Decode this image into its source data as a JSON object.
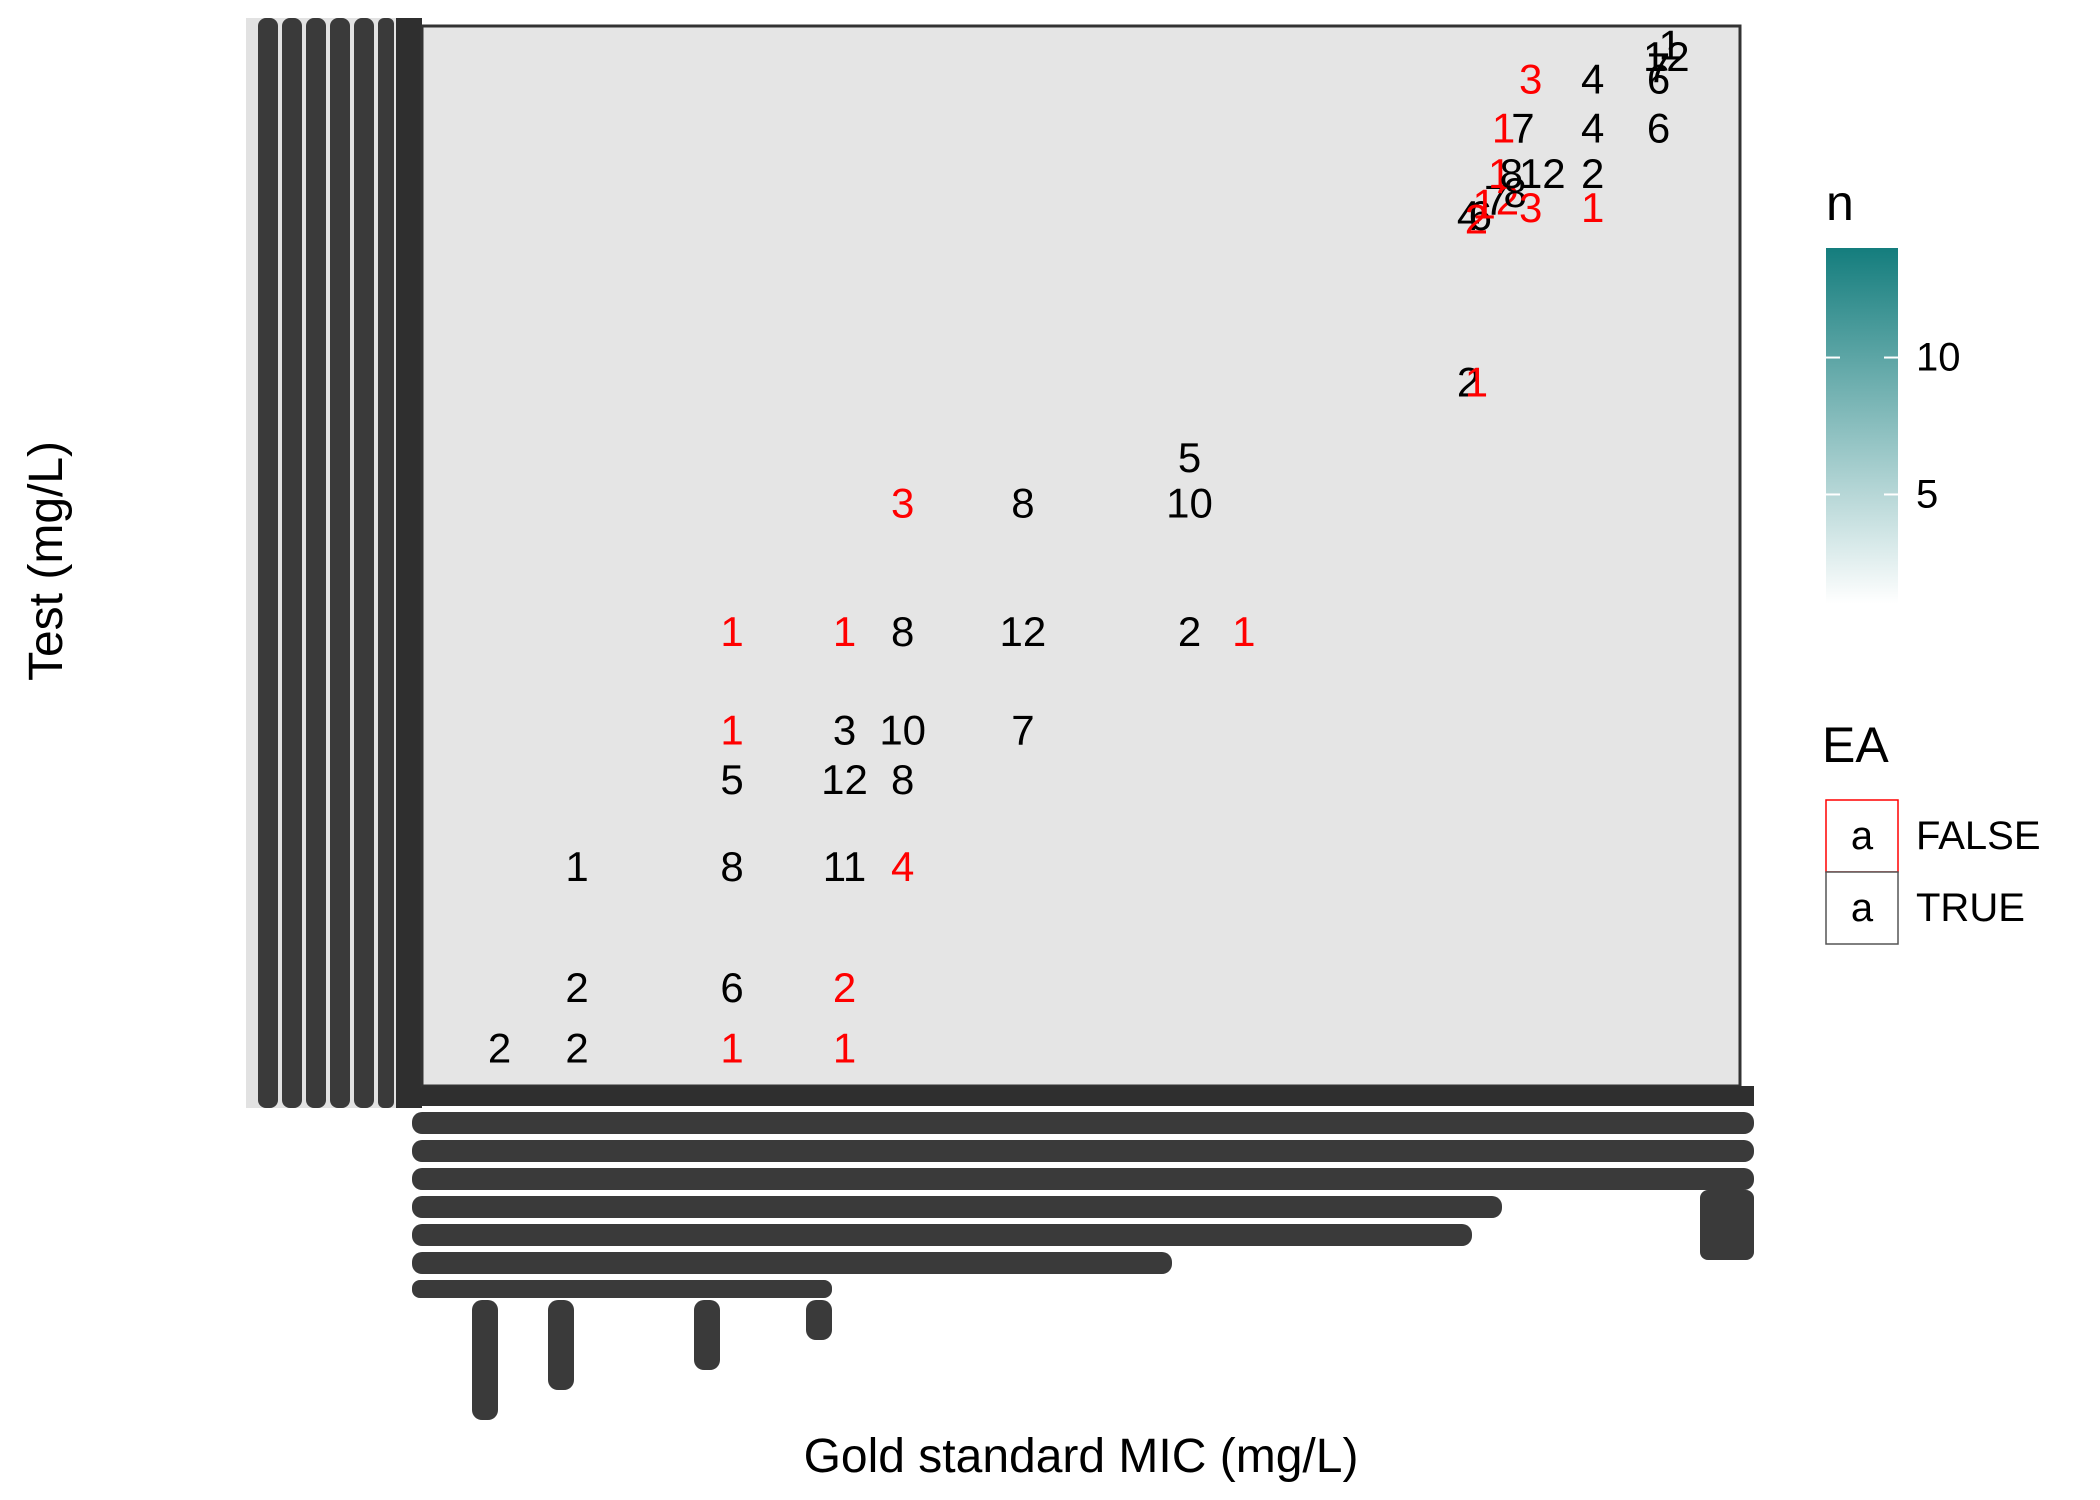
{
  "chart_data": {
    "type": "heatmap",
    "title": "",
    "xlabel": "Gold standard MIC (mg/L)",
    "ylabel": "Test (mg/L)",
    "x_tick_labels_note": "",
    "grid": false,
    "colors": {
      "panel_background": "#e5e5e5",
      "panel_border": "#333333",
      "tick_overplot": "#3a3a3a",
      "ea_true": "#000000",
      "ea_false": "#ff0000",
      "gradient_low": "#ffffff",
      "gradient_high": "#147d7d"
    },
    "legend_fill": {
      "title": "n",
      "ticks": [
        "5",
        "10"
      ],
      "tick_values": [
        5,
        10
      ],
      "range": [
        1,
        14
      ],
      "placement": "right"
    },
    "legend_ea": {
      "title": "EA",
      "entries": [
        {
          "key": "a",
          "label": "FALSE",
          "color": "#ff0000"
        },
        {
          "key": "a",
          "label": "TRUE",
          "color": "#000000"
        }
      ],
      "placement": "right"
    },
    "points": [
      {
        "x": 2.0,
        "y": 0.5,
        "n": "2",
        "ea": true
      },
      {
        "x": 3.0,
        "y": 0.5,
        "n": "2",
        "ea": true
      },
      {
        "x": 5.0,
        "y": 0.5,
        "n": "1",
        "ea": false
      },
      {
        "x": 6.45,
        "y": 0.5,
        "n": "1",
        "ea": false
      },
      {
        "x": 3.0,
        "y": 1.3,
        "n": "2",
        "ea": true
      },
      {
        "x": 5.0,
        "y": 1.3,
        "n": "6",
        "ea": true
      },
      {
        "x": 6.45,
        "y": 1.3,
        "n": "2",
        "ea": false
      },
      {
        "x": 3.0,
        "y": 2.9,
        "n": "1",
        "ea": true
      },
      {
        "x": 5.0,
        "y": 2.9,
        "n": "8",
        "ea": true
      },
      {
        "x": 6.45,
        "y": 2.9,
        "n": "11",
        "ea": true
      },
      {
        "x": 7.2,
        "y": 2.9,
        "n": "4",
        "ea": false
      },
      {
        "x": 5.0,
        "y": 4.05,
        "n": "5",
        "ea": true
      },
      {
        "x": 6.45,
        "y": 4.05,
        "n": "12",
        "ea": true
      },
      {
        "x": 7.2,
        "y": 4.05,
        "n": "8",
        "ea": true
      },
      {
        "x": 5.0,
        "y": 4.7,
        "n": "1",
        "ea": false
      },
      {
        "x": 6.45,
        "y": 4.7,
        "n": "3",
        "ea": true
      },
      {
        "x": 7.2,
        "y": 4.7,
        "n": "10",
        "ea": true
      },
      {
        "x": 8.75,
        "y": 4.7,
        "n": "7",
        "ea": true
      },
      {
        "x": 5.0,
        "y": 6.0,
        "n": "1",
        "ea": false
      },
      {
        "x": 6.45,
        "y": 6.0,
        "n": "1",
        "ea": false
      },
      {
        "x": 7.2,
        "y": 6.0,
        "n": "8",
        "ea": true
      },
      {
        "x": 8.75,
        "y": 6.0,
        "n": "12",
        "ea": true
      },
      {
        "x": 10.9,
        "y": 6.0,
        "n": "2",
        "ea": true
      },
      {
        "x": 11.6,
        "y": 6.0,
        "n": "1",
        "ea": false
      },
      {
        "x": 7.2,
        "y": 7.7,
        "n": "3",
        "ea": false
      },
      {
        "x": 8.75,
        "y": 7.7,
        "n": "8",
        "ea": true
      },
      {
        "x": 10.9,
        "y": 7.7,
        "n": "10",
        "ea": true
      },
      {
        "x": 10.9,
        "y": 8.3,
        "n": "5",
        "ea": true
      },
      {
        "x": 14.5,
        "y": 9.3,
        "n": "2",
        "ea": true
      },
      {
        "x": 14.6,
        "y": 9.3,
        "n": "1",
        "ea": false
      },
      {
        "x": 14.5,
        "y": 11.5,
        "n": "4",
        "ea": true
      },
      {
        "x": 14.65,
        "y": 11.5,
        "n": "6",
        "ea": true
      },
      {
        "x": 14.6,
        "y": 11.45,
        "n": "2",
        "ea": false
      },
      {
        "x": 14.7,
        "y": 11.65,
        "n": "1",
        "ea": false
      },
      {
        "x": 14.85,
        "y": 11.7,
        "n": "7",
        "ea": true
      },
      {
        "x": 15.0,
        "y": 11.7,
        "n": "2",
        "ea": false
      },
      {
        "x": 15.1,
        "y": 11.8,
        "n": "8",
        "ea": true
      },
      {
        "x": 15.3,
        "y": 11.6,
        "n": "3",
        "ea": false
      },
      {
        "x": 16.1,
        "y": 11.6,
        "n": "1",
        "ea": false
      },
      {
        "x": 14.9,
        "y": 12.05,
        "n": "1",
        "ea": false
      },
      {
        "x": 15.05,
        "y": 12.05,
        "n": "8",
        "ea": true
      },
      {
        "x": 15.45,
        "y": 12.05,
        "n": "12",
        "ea": true
      },
      {
        "x": 16.1,
        "y": 12.05,
        "n": "2",
        "ea": true
      },
      {
        "x": 14.95,
        "y": 12.65,
        "n": "1",
        "ea": false
      },
      {
        "x": 15.2,
        "y": 12.65,
        "n": "7",
        "ea": true
      },
      {
        "x": 16.1,
        "y": 12.65,
        "n": "4",
        "ea": true
      },
      {
        "x": 16.95,
        "y": 12.65,
        "n": "6",
        "ea": true
      },
      {
        "x": 15.3,
        "y": 13.3,
        "n": "3",
        "ea": false
      },
      {
        "x": 16.1,
        "y": 13.3,
        "n": "4",
        "ea": true
      },
      {
        "x": 16.95,
        "y": 13.3,
        "n": "6",
        "ea": true
      },
      {
        "x": 16.95,
        "y": 13.45,
        "n": "7",
        "ea": true
      },
      {
        "x": 17.05,
        "y": 13.6,
        "n": "12",
        "ea": true
      },
      {
        "x": 17.1,
        "y": 13.75,
        "n": "1",
        "ea": true
      }
    ],
    "xlim": [
      1,
      18
    ],
    "ylim": [
      0,
      14
    ]
  }
}
